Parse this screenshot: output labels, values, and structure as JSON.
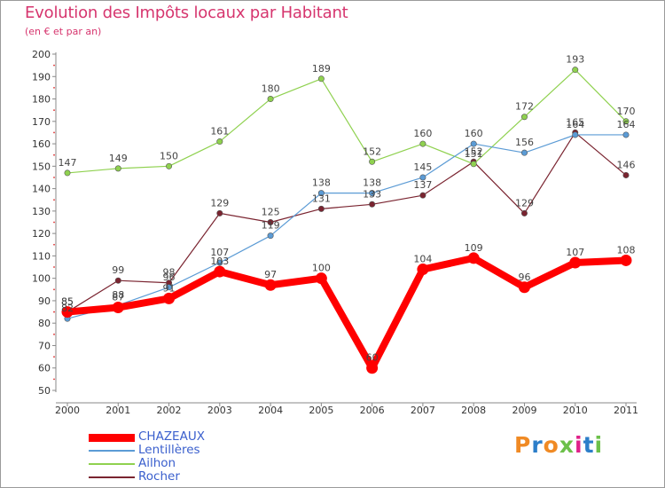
{
  "header": {
    "title": "Evolution des Impôts locaux par Habitant",
    "subtitle": "(en € et par an)"
  },
  "logo": {
    "text": "Proxiti",
    "colors": [
      "#f08a24",
      "#2c7ec9",
      "#f08a24",
      "#6cc04a",
      "#e0218a",
      "#2c7ec9",
      "#6cc04a"
    ]
  },
  "chart_data": {
    "type": "line",
    "title": "Evolution des Impôts locaux par Habitant",
    "subtitle": "(en € et par an)",
    "xlabel": "",
    "ylabel": "",
    "x": [
      "2000",
      "2001",
      "2002",
      "2003",
      "2004",
      "2005",
      "2006",
      "2007",
      "2008",
      "2009",
      "2010",
      "2011"
    ],
    "ylim": [
      50,
      200
    ],
    "yticks": [
      50,
      60,
      70,
      80,
      90,
      100,
      110,
      120,
      130,
      140,
      150,
      160,
      170,
      180,
      190,
      200
    ],
    "grid": false,
    "legend": "bottom-left",
    "series": [
      {
        "name": "CHAZEAUX",
        "color": "#ff0000",
        "values": [
          85,
          87,
          91,
          103,
          97,
          100,
          60,
          104,
          109,
          96,
          107,
          108
        ],
        "labels": [
          "85",
          "87",
          "91",
          "103",
          "97",
          "100",
          "60",
          "104",
          "109",
          "96",
          "107",
          "108"
        ]
      },
      {
        "name": "Lentillères",
        "color": "#5b9bd5",
        "values": [
          82,
          88,
          96,
          107,
          119,
          138,
          138,
          145,
          160,
          156,
          164,
          164
        ],
        "labels": [
          "82",
          "88",
          "96",
          "107",
          "119",
          "138",
          "138",
          "145",
          "160",
          "156",
          "164",
          "164"
        ]
      },
      {
        "name": "Ailhon",
        "color": "#8fd14f",
        "values": [
          147,
          149,
          150,
          161,
          180,
          189,
          152,
          160,
          151,
          172,
          193,
          170
        ],
        "labels": [
          "147",
          "149",
          "150",
          "161",
          "180",
          "189",
          "152",
          "160",
          "151",
          "172",
          "193",
          "170"
        ]
      },
      {
        "name": "Rocher",
        "color": "#7a2430",
        "values": [
          85,
          99,
          98,
          129,
          125,
          131,
          133,
          137,
          152,
          129,
          165,
          146
        ],
        "labels": [
          "85",
          "99",
          "98",
          "129",
          "125",
          "131",
          "133",
          "137",
          "152",
          "129",
          "165",
          "146"
        ]
      }
    ]
  }
}
